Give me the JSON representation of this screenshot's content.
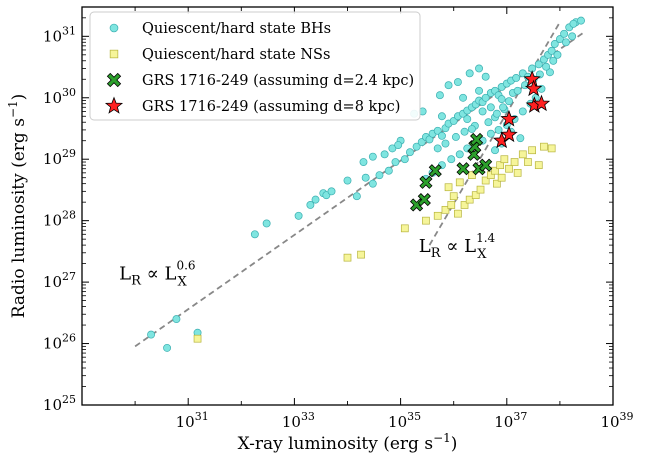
{
  "chart_data": {
    "type": "scatter",
    "xlabel": "X-ray luminosity (erg s⁻¹)",
    "ylabel": "Radio luminosity (erg s⁻¹)",
    "xscale": "log",
    "yscale": "log",
    "xlim": [
      1e+29,
      1e+39
    ],
    "ylim": [
      1e+25,
      3e+31
    ],
    "grid": false,
    "legend_position": "top-left",
    "x_ticks": [
      {
        "value": 1e+31,
        "label": "10",
        "exp": "31"
      },
      {
        "value": 1e+33,
        "label": "10",
        "exp": "33"
      },
      {
        "value": 1e+35,
        "label": "10",
        "exp": "35"
      },
      {
        "value": 1e+37,
        "label": "10",
        "exp": "37"
      },
      {
        "value": 1e+39,
        "label": "10",
        "exp": "39"
      }
    ],
    "y_ticks": [
      {
        "value": 1e+25,
        "label": "10",
        "exp": "25"
      },
      {
        "value": 1e+26,
        "label": "10",
        "exp": "26"
      },
      {
        "value": 1e+27,
        "label": "10",
        "exp": "27"
      },
      {
        "value": 1e+28,
        "label": "10",
        "exp": "28"
      },
      {
        "value": 1e+29,
        "label": "10",
        "exp": "29"
      },
      {
        "value": 1e+30,
        "label": "10",
        "exp": "30"
      },
      {
        "value": 1e+31,
        "label": "10",
        "exp": "31"
      }
    ],
    "series": [
      {
        "name": "Quiescent/hard state BHs",
        "marker": "circle",
        "color": "#7fe5e0",
        "edge": "#3aaeb0",
        "points": [
          [
            2e+30,
            1.4e+26
          ],
          [
            4e+30,
            8.5e+25
          ],
          [
            6e+30,
            2.5e+26
          ],
          [
            1.5e+31,
            1.5e+26
          ],
          [
            3e+32,
            9e+27
          ],
          [
            1.8e+32,
            6e+27
          ],
          [
            1.2e+33,
            1.2e+28
          ],
          [
            2e+33,
            1.8e+28
          ],
          [
            2.5e+33,
            2.2e+28
          ],
          [
            3.5e+33,
            2.8e+28
          ],
          [
            4e+33,
            2.6e+28
          ],
          [
            5e+33,
            3e+28
          ],
          [
            1e+34,
            4.5e+28
          ],
          [
            1.5e+34,
            2.5e+28
          ],
          [
            2.2e+34,
            5e+28
          ],
          [
            3e+34,
            4e+28
          ],
          [
            4e+34,
            5.5e+28
          ],
          [
            6e+34,
            6.5e+28
          ],
          [
            8e+34,
            9e+28
          ],
          [
            1.2e+35,
            1e+29
          ],
          [
            1.5e+35,
            1.3e+29
          ],
          [
            2e+35,
            1.6e+29
          ],
          [
            2.5e+35,
            1.9e+29
          ],
          [
            3e+35,
            2.3e+29
          ],
          [
            3.5e+35,
            2.1e+29
          ],
          [
            4e+35,
            2.6e+29
          ],
          [
            5e+35,
            2.9e+29
          ],
          [
            6e+35,
            2.4e+29
          ],
          [
            7e+35,
            3.2e+29
          ],
          [
            8e+35,
            3.8e+29
          ],
          [
            1e+36,
            4.2e+29
          ],
          [
            1.2e+36,
            5e+29
          ],
          [
            1.5e+36,
            5.5e+29
          ],
          [
            1.8e+36,
            6.2e+29
          ],
          [
            2.2e+36,
            7e+29
          ],
          [
            2.6e+36,
            7.8e+29
          ],
          [
            3e+36,
            9e+29
          ],
          [
            3.5e+36,
            8.5e+29
          ],
          [
            4e+36,
            1e+30
          ],
          [
            5e+36,
            1.2e+30
          ],
          [
            6e+36,
            1.3e+30
          ],
          [
            7e+36,
            1.1e+30
          ],
          [
            8e+36,
            1.5e+30
          ],
          [
            1e+37,
            1.7e+30
          ],
          [
            1.2e+37,
            1.9e+30
          ],
          [
            1.5e+37,
            2.1e+30
          ],
          [
            2e+37,
            2.5e+30
          ],
          [
            2.5e+37,
            2.2e+30
          ],
          [
            3e+37,
            3e+30
          ],
          [
            4e+37,
            3.5e+30
          ],
          [
            5e+37,
            4.2e+30
          ],
          [
            6e+37,
            5e+30
          ],
          [
            7e+37,
            5.8e+30
          ],
          [
            8e+37,
            7.5e+30
          ],
          [
            1e+38,
            9e+30
          ],
          [
            1.2e+38,
            1.1e+31
          ],
          [
            1.5e+38,
            1.4e+31
          ],
          [
            2e+38,
            1.7e+31
          ],
          [
            2.5e+38,
            1.8e+31
          ],
          [
            1.8e+38,
            1.6e+31
          ],
          [
            1e+35,
            2e+29
          ],
          [
            6e+35,
            5e+29
          ],
          [
            1.5e+36,
            1e+30
          ],
          [
            3e+36,
            1.3e+30
          ],
          [
            1.8e+36,
            4.5e+29
          ],
          [
            2.5e+36,
            3.5e+29
          ],
          [
            3.5e+36,
            6e+29
          ],
          [
            5e+36,
            7e+29
          ],
          [
            8e+36,
            9.5e+29
          ],
          [
            1.3e+37,
            1.2e+30
          ],
          [
            9e+36,
            6.5e+29
          ],
          [
            6e+36,
            4.8e+29
          ],
          [
            3e+35,
            4.8e+28
          ],
          [
            4e+35,
            6e+28
          ],
          [
            6e+35,
            8e+28
          ],
          [
            9e+35,
            1e+29
          ],
          [
            1.3e+36,
            1.2e+29
          ],
          [
            1.8e+36,
            1.5e+29
          ],
          [
            2.5e+36,
            1.7e+29
          ],
          [
            3.5e+36,
            2e+29
          ],
          [
            5e+36,
            2.6e+29
          ],
          [
            7e+36,
            3e+29
          ],
          [
            1e+37,
            3.6e+29
          ],
          [
            1.4e+37,
            4.5e+29
          ],
          [
            2e+37,
            6e+29
          ],
          [
            2.8e+37,
            8e+29
          ],
          [
            3.5e+37,
            1e+30
          ],
          [
            4.5e+37,
            1.4e+30
          ],
          [
            6.5e+37,
            2.6e+30
          ],
          [
            9e+37,
            5e+30
          ],
          [
            1.3e+38,
            8e+30
          ],
          [
            1.7e+38,
            1e+31
          ],
          [
            5e+35,
            1.5e+29
          ],
          [
            7e+35,
            1.8e+29
          ],
          [
            1.1e+36,
            2.3e+29
          ],
          [
            1.6e+36,
            2.8e+29
          ],
          [
            2.2e+36,
            3.1e+29
          ],
          [
            4.5e+36,
            4e+29
          ],
          [
            6.5e+36,
            5.5e+29
          ],
          [
            8.5e+36,
            7e+29
          ],
          [
            1.1e+37,
            8.8e+29
          ],
          [
            1.6e+37,
            1.3e+30
          ],
          [
            2.2e+37,
            1.6e+30
          ],
          [
            3.2e+37,
            2e+30
          ],
          [
            4.2e+37,
            2.4e+30
          ],
          [
            5.5e+37,
            3.2e+30
          ],
          [
            7.5e+37,
            4e+30
          ],
          [
            3e+34,
            1.1e+29
          ],
          [
            5e+34,
            1.2e+29
          ],
          [
            2e+34,
            9e+28
          ],
          [
            7e+34,
            1.5e+29
          ],
          [
            9e+34,
            1.7e+29
          ],
          [
            2e+36,
            2.5e+30
          ],
          [
            3e+36,
            3e+30
          ],
          [
            1.2e+36,
            1.8e+30
          ],
          [
            4e+36,
            2.2e+30
          ],
          [
            8e+35,
            1.6e+30
          ],
          [
            5.5e+35,
            1.1e+30
          ],
          [
            2.6e+35,
            6e+29
          ],
          [
            1.8e+35,
            5.5e+29
          ],
          [
            1.2e+37,
            2.8e+29
          ],
          [
            1.8e+37,
            2.2e+29
          ],
          [
            8e+36,
            1.8e+29
          ],
          [
            6e+36,
            1.4e+29
          ]
        ]
      },
      {
        "name": "Quiescent/hard state NSs",
        "marker": "square",
        "color": "#f6f59a",
        "edge": "#b7b43c",
        "points": [
          [
            1.5e+31,
            1.2e+26
          ],
          [
            1e+34,
            2.5e+27
          ],
          [
            1.8e+34,
            2.8e+27
          ],
          [
            1.2e+35,
            7.5e+27
          ],
          [
            3e+35,
            1e+28
          ],
          [
            5e+35,
            1.2e+28
          ],
          [
            7e+35,
            1.5e+28
          ],
          [
            9e+35,
            1.8e+28
          ],
          [
            1.2e+36,
            1.3e+28
          ],
          [
            1.6e+36,
            1.8e+28
          ],
          [
            2e+36,
            2.2e+28
          ],
          [
            2.6e+36,
            2.6e+28
          ],
          [
            3.2e+36,
            3.2e+28
          ],
          [
            4e+36,
            4.5e+28
          ],
          [
            5e+36,
            5.5e+28
          ],
          [
            6e+36,
            6.5e+28
          ],
          [
            7.5e+36,
            8e+28
          ],
          [
            9e+36,
            1e+29
          ],
          [
            1.1e+37,
            7e+28
          ],
          [
            1.4e+37,
            9e+28
          ],
          [
            2e+37,
            1.2e+29
          ],
          [
            3e+37,
            1.4e+29
          ],
          [
            5e+37,
            1.6e+29
          ],
          [
            7e+37,
            1.5e+29
          ],
          [
            4e+37,
            8e+28
          ],
          [
            8e+35,
            3.5e+28
          ],
          [
            1.3e+36,
            4.2e+28
          ],
          [
            2.2e+36,
            5.5e+28
          ],
          [
            3e+36,
            7e+28
          ],
          [
            6.5e+36,
            4e+28
          ],
          [
            1e+36,
            2.5e+28
          ],
          [
            8e+36,
            5e+28
          ],
          [
            1.6e+37,
            6e+28
          ],
          [
            2.5e+37,
            9e+28
          ]
        ]
      },
      {
        "name": "GRS 1716-249 (assuming d=2.4 kpc)",
        "marker": "x",
        "color": "#2ca02c",
        "edge": "#000000",
        "points": [
          [
            2e+35,
            1.8e+28
          ],
          [
            2.8e+35,
            2.2e+28
          ],
          [
            3e+35,
            4.2e+28
          ],
          [
            4.5e+35,
            6.5e+28
          ],
          [
            1.5e+36,
            7e+28
          ],
          [
            2.4e+36,
            1.2e+29
          ],
          [
            2.5e+36,
            1.6e+29
          ],
          [
            2.7e+36,
            2.1e+29
          ],
          [
            3e+36,
            7e+28
          ],
          [
            4e+36,
            8e+28
          ]
        ]
      },
      {
        "name": "GRS 1716-249 (assuming d=8 kpc)",
        "marker": "star",
        "color": "#ff2020",
        "edge": "#000000",
        "points": [
          [
            8e+36,
            2e+29
          ],
          [
            1.1e+37,
            2.5e+29
          ],
          [
            1.1e+37,
            4.5e+29
          ],
          [
            3e+37,
            2e+30
          ],
          [
            3.2e+37,
            1.4e+30
          ],
          [
            3.3e+37,
            7.5e+29
          ],
          [
            4.5e+37,
            8e+29
          ]
        ]
      }
    ],
    "lines": [
      {
        "label": "0.6",
        "from": [
          1e+30,
          9e+25
        ],
        "to": [
          3e+38,
          1.2e+31
        ],
        "color": "#888888",
        "dash": "dashed"
      },
      {
        "label": "1.4",
        "from": [
          3.5e+35,
          4e+27
        ],
        "to": [
          1e+38,
          1.7e+31
        ],
        "color": "#888888",
        "dash": "dashed"
      }
    ],
    "annotations": [
      {
        "text": "L",
        "sub": "R",
        "mid": " ∝ L",
        "sub2": "X",
        "sup": "0.6",
        "at": [
          5e+29,
          1.1e+27
        ]
      },
      {
        "text": "L",
        "sub": "R",
        "mid": " ∝ L",
        "sub2": "X",
        "sup": "1.4",
        "at": [
          2.2e+35,
          3.1e+27
        ]
      }
    ]
  }
}
